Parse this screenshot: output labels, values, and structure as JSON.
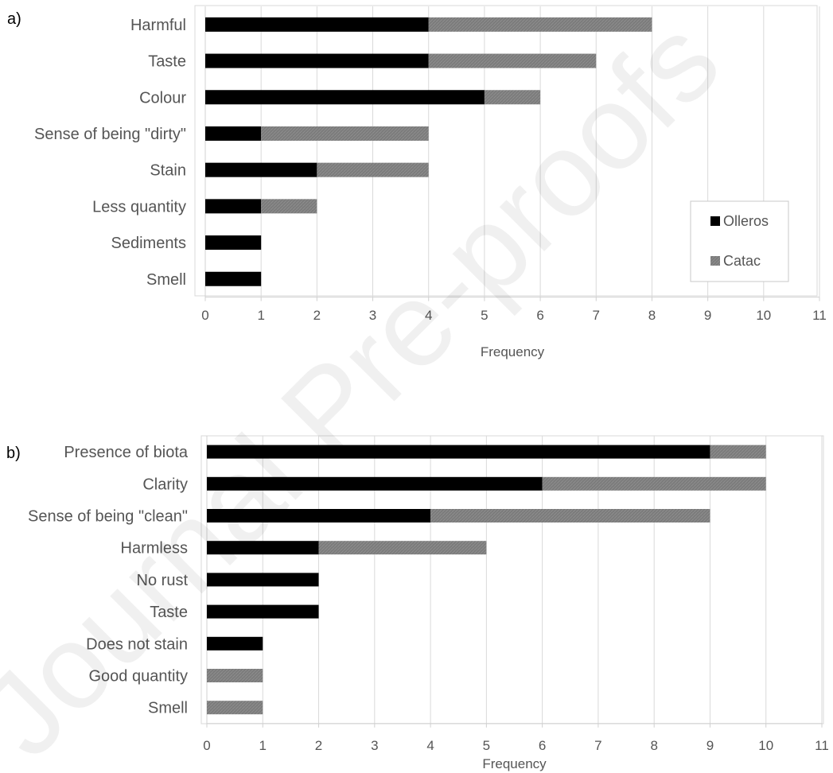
{
  "watermark": "Journal Pre-proofs",
  "chart_data": [
    {
      "type": "bar",
      "orientation": "horizontal",
      "stacked": true,
      "panel_label": "a)",
      "categories": [
        "Harmful",
        "Taste",
        "Colour",
        "Sense of being \"dirty\"",
        "Stain",
        "Less quantity",
        "Sediments",
        "Smell"
      ],
      "series": [
        {
          "name": "Olleros",
          "color": "#000000",
          "values": [
            4,
            4,
            5,
            1,
            2,
            1,
            1,
            1
          ]
        },
        {
          "name": "Catac",
          "color": "#808080",
          "values": [
            4,
            3,
            1,
            3,
            2,
            1,
            0,
            0
          ]
        }
      ],
      "xlabel": "Frequency",
      "xlim": [
        0,
        11
      ],
      "xticks": [
        "0",
        "1",
        "2",
        "3",
        "4",
        "5",
        "6",
        "7",
        "8",
        "9",
        "10",
        "11"
      ],
      "grid": "vertical",
      "legend": "right",
      "legend_entries": [
        "Olleros",
        "Catac"
      ]
    },
    {
      "type": "bar",
      "orientation": "horizontal",
      "stacked": true,
      "panel_label": "b)",
      "categories": [
        "Presence of biota",
        "Clarity",
        "Sense of being \"clean\"",
        "Harmless",
        "No rust",
        "Taste",
        "Does not stain",
        "Good quantity",
        "Smell"
      ],
      "series": [
        {
          "name": "Olleros",
          "color": "#000000",
          "values": [
            9,
            6,
            4,
            2,
            2,
            2,
            1,
            0,
            0
          ]
        },
        {
          "name": "Catac",
          "color": "#808080",
          "values": [
            1,
            4,
            5,
            3,
            0,
            0,
            0,
            1,
            1
          ]
        }
      ],
      "xlabel": "Frequency",
      "xlim": [
        0,
        11
      ],
      "xticks": [
        "0",
        "1",
        "2",
        "3",
        "4",
        "5",
        "6",
        "7",
        "8",
        "9",
        "10",
        "11"
      ],
      "grid": "vertical",
      "legend": "none"
    }
  ]
}
